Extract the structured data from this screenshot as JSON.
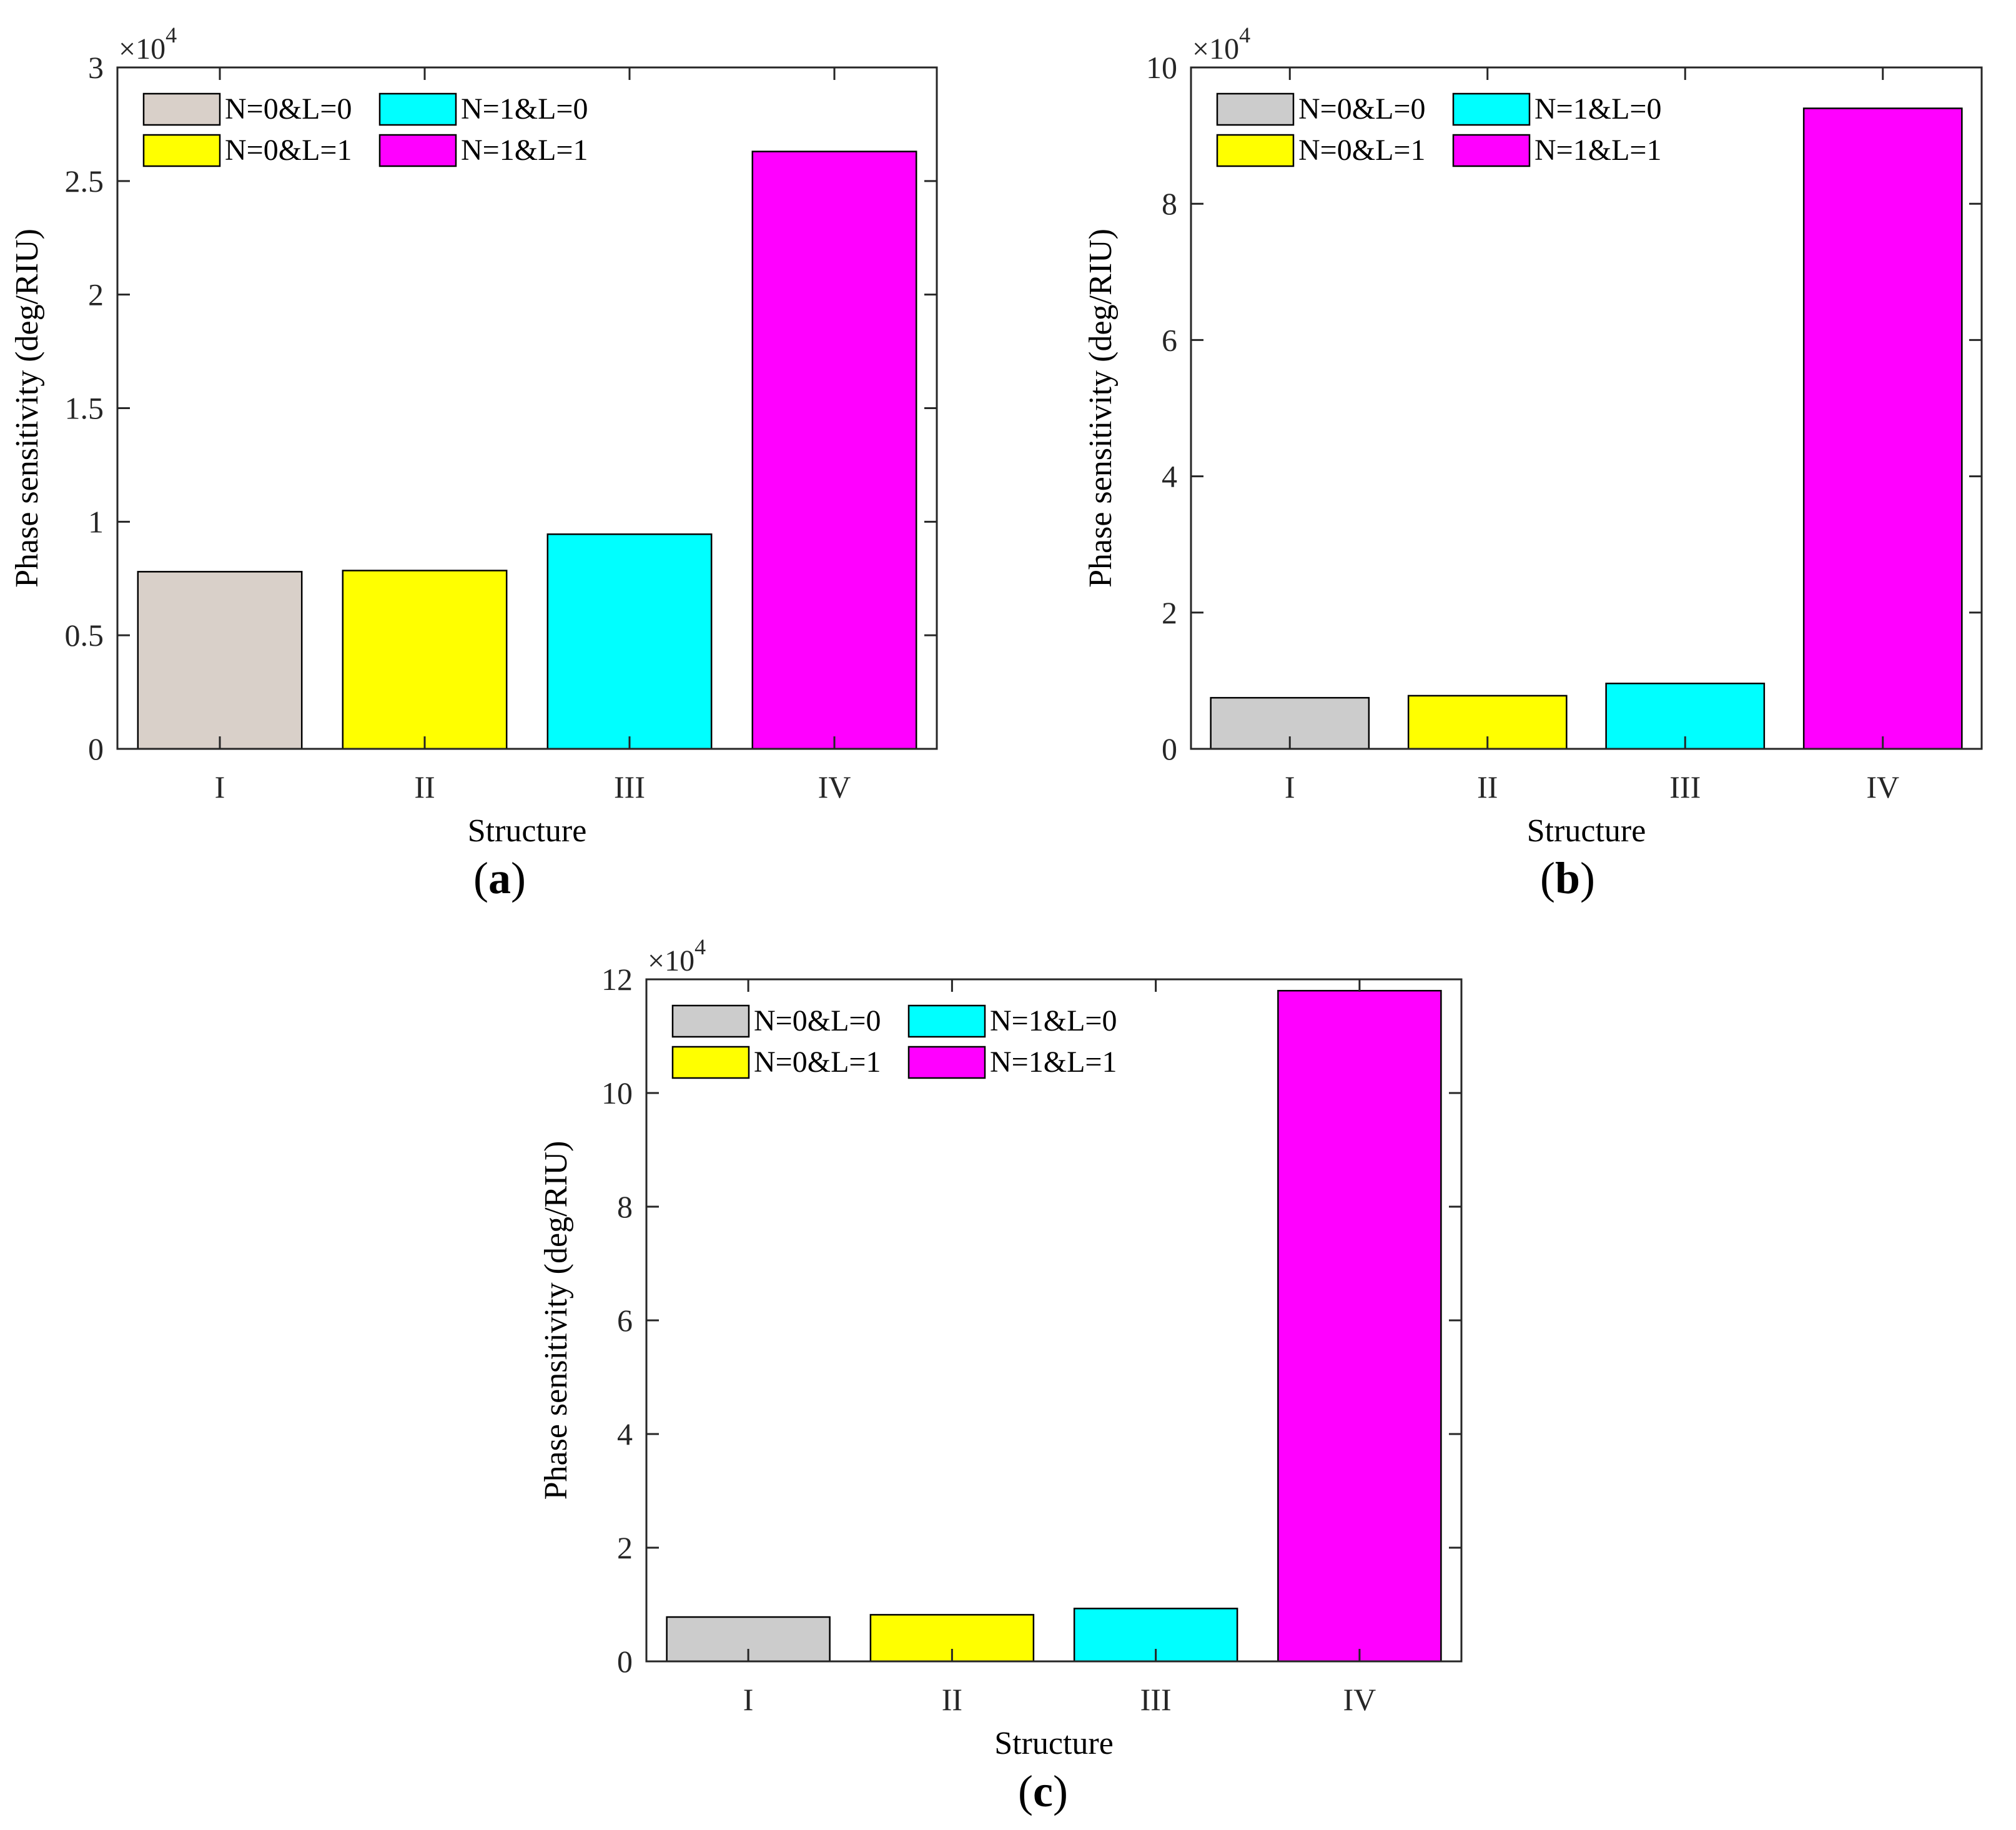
{
  "chart_data": [
    {
      "type": "bar",
      "panel_label": "a",
      "title": "",
      "categories": [
        "I",
        "II",
        "III",
        "IV"
      ],
      "values": [
        7800,
        7850,
        9450,
        26300
      ],
      "bar_colors": [
        "#d9d0c9",
        "#ffff00",
        "#00ffff",
        "#ff00ff"
      ],
      "xlabel": "Structure",
      "ylabel": "Phase sensitivity (deg/RIU)",
      "ylim": [
        0,
        30000
      ],
      "yticks": [
        0,
        5000,
        10000,
        15000,
        20000,
        25000,
        30000
      ],
      "ytick_labels": [
        "0",
        "0.5",
        "1",
        "1.5",
        "2",
        "2.5",
        "3"
      ],
      "exponent_prefix": "×10",
      "exponent_power": "4",
      "legend": {
        "placement": "top-left",
        "entries": [
          {
            "label": "N=0&L=0",
            "color": "#d9d0c9"
          },
          {
            "label": "N=1&L=0",
            "color": "#00ffff"
          },
          {
            "label": "N=0&L=1",
            "color": "#ffff00"
          },
          {
            "label": "N=1&L=1",
            "color": "#ff00ff"
          }
        ]
      },
      "grid": false
    },
    {
      "type": "bar",
      "panel_label": "b",
      "title": "",
      "categories": [
        "I",
        "II",
        "III",
        "IV"
      ],
      "values": [
        7500,
        7800,
        9600,
        94000
      ],
      "bar_colors": [
        "#cccccc",
        "#ffff00",
        "#00ffff",
        "#ff00ff"
      ],
      "xlabel": "Structure",
      "ylabel": "Phase sensitivity (deg/RIU)",
      "ylim": [
        0,
        100000
      ],
      "yticks": [
        0,
        20000,
        40000,
        60000,
        80000,
        100000
      ],
      "ytick_labels": [
        "0",
        "2",
        "4",
        "6",
        "8",
        "10"
      ],
      "exponent_prefix": "×10",
      "exponent_power": "4",
      "legend": {
        "placement": "top-left",
        "entries": [
          {
            "label": "N=0&L=0",
            "color": "#cccccc"
          },
          {
            "label": "N=1&L=0",
            "color": "#00ffff"
          },
          {
            "label": "N=0&L=1",
            "color": "#ffff00"
          },
          {
            "label": "N=1&L=1",
            "color": "#ff00ff"
          }
        ]
      },
      "grid": false
    },
    {
      "type": "bar",
      "panel_label": "c",
      "title": "",
      "categories": [
        "I",
        "II",
        "III",
        "IV"
      ],
      "values": [
        7800,
        8200,
        9300,
        118000
      ],
      "bar_colors": [
        "#cccccc",
        "#ffff00",
        "#00ffff",
        "#ff00ff"
      ],
      "xlabel": "Structure",
      "ylabel": "Phase sensitivity (deg/RIU)",
      "ylim": [
        0,
        120000
      ],
      "yticks": [
        0,
        20000,
        40000,
        60000,
        80000,
        100000,
        120000
      ],
      "ytick_labels": [
        "0",
        "2",
        "4",
        "6",
        "8",
        "10",
        "12"
      ],
      "exponent_prefix": "×10",
      "exponent_power": "4",
      "legend": {
        "placement": "top-left",
        "entries": [
          {
            "label": "N=0&L=0",
            "color": "#cccccc"
          },
          {
            "label": "N=1&L=0",
            "color": "#00ffff"
          },
          {
            "label": "N=0&L=1",
            "color": "#ffff00"
          },
          {
            "label": "N=1&L=1",
            "color": "#ff00ff"
          }
        ]
      },
      "grid": false
    }
  ]
}
